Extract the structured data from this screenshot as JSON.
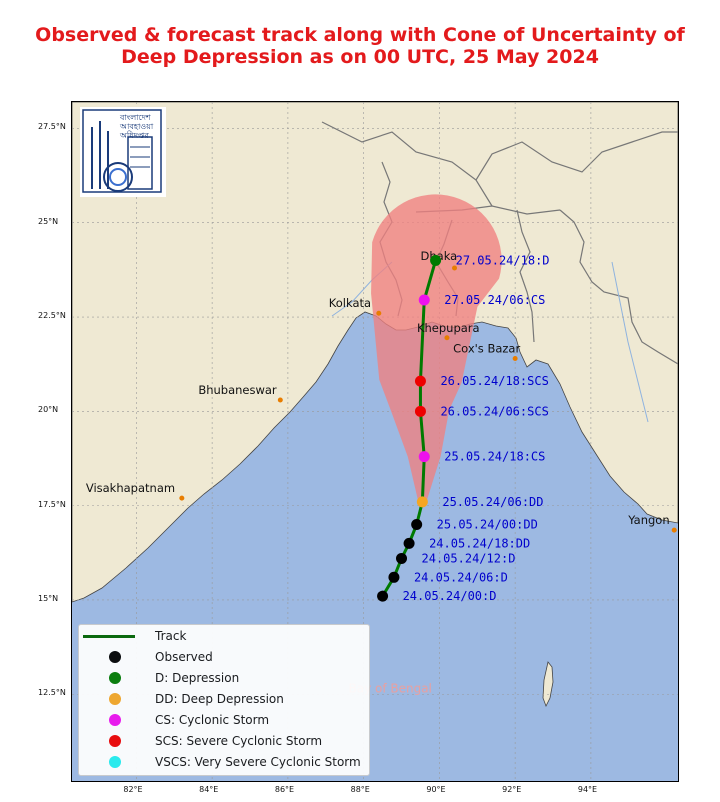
{
  "title": {
    "line1": "Observed & forecast track along with Cone of Uncertainty of",
    "line2": "Deep Depression as on 00 UTC, 25 May 2024"
  },
  "logo": {
    "text_lines": [
      "বাংলাদেশ",
      "আবহাওয়া",
      "অধিদপ্তর"
    ]
  },
  "axes": {
    "x_ticks": [
      {
        "lon": 82,
        "label": "82°E"
      },
      {
        "lon": 84,
        "label": "84°E"
      },
      {
        "lon": 86,
        "label": "86°E"
      },
      {
        "lon": 88,
        "label": "88°E"
      },
      {
        "lon": 90,
        "label": "90°E"
      },
      {
        "lon": 92,
        "label": "92°E"
      },
      {
        "lon": 94,
        "label": "94°E"
      }
    ],
    "y_ticks": [
      {
        "lat": 27.5,
        "label": "27.5°N"
      },
      {
        "lat": 25,
        "label": "25°N"
      },
      {
        "lat": 22.5,
        "label": "22.5°N"
      },
      {
        "lat": 20,
        "label": "20°N"
      },
      {
        "lat": 17.5,
        "label": "17.5°N"
      },
      {
        "lat": 15,
        "label": "15°N"
      },
      {
        "lat": 12.5,
        "label": "12.5°N"
      }
    ],
    "lon_range": [
      80.3,
      96.3
    ],
    "lat_range": [
      10.2,
      28.2
    ],
    "grid": true
  },
  "cities": [
    {
      "name": "Dhaka",
      "lon": 90.4,
      "lat": 23.8
    },
    {
      "name": "Kolkata",
      "lon": 88.4,
      "lat": 22.6
    },
    {
      "name": "Khepupara",
      "lon": 90.2,
      "lat": 21.95
    },
    {
      "name": "Cox's Bazar",
      "lon": 92.0,
      "lat": 21.4
    },
    {
      "name": "Bhubaneswar",
      "lon": 85.8,
      "lat": 20.3
    },
    {
      "name": "Visakhapatnam",
      "lon": 83.2,
      "lat": 17.7
    },
    {
      "name": "Yangon",
      "lon": 96.2,
      "lat": 16.85
    }
  ],
  "sea_label": "Bay of Bengal",
  "track_points": [
    {
      "lon": 88.5,
      "lat": 15.1,
      "cat": "observed",
      "label": "24.05.24/00:D"
    },
    {
      "lon": 88.8,
      "lat": 15.6,
      "cat": "observed",
      "label": "24.05.24/06:D"
    },
    {
      "lon": 89.0,
      "lat": 16.1,
      "cat": "observed",
      "label": "24.05.24/12:D"
    },
    {
      "lon": 89.2,
      "lat": 16.5,
      "cat": "observed",
      "label": "24.05.24/18:DD"
    },
    {
      "lon": 89.4,
      "lat": 17.0,
      "cat": "observed",
      "label": "25.05.24/00:DD"
    },
    {
      "lon": 89.55,
      "lat": 17.6,
      "cat": "DD",
      "label": "25.05.24/06:DD"
    },
    {
      "lon": 89.6,
      "lat": 18.8,
      "cat": "CS",
      "label": "25.05.24/18:CS"
    },
    {
      "lon": 89.5,
      "lat": 20.0,
      "cat": "SCS",
      "label": "26.05.24/06:SCS"
    },
    {
      "lon": 89.5,
      "lat": 20.8,
      "cat": "SCS",
      "label": "26.05.24/18:SCS"
    },
    {
      "lon": 89.6,
      "lat": 22.95,
      "cat": "CS",
      "label": "27.05.24/06:CS"
    },
    {
      "lon": 89.9,
      "lat": 24.0,
      "cat": "D",
      "label": "27.05.24/18:D"
    }
  ],
  "legend": {
    "items": [
      {
        "kind": "line",
        "color": "#007a00",
        "label": "Track"
      },
      {
        "kind": "dot",
        "color": "#000000",
        "label": "Observed"
      },
      {
        "kind": "dot",
        "color": "#007a00",
        "label": "D: Depression"
      },
      {
        "kind": "dot",
        "color": "#f5a623",
        "label": "DD: Deep Depression"
      },
      {
        "kind": "dot",
        "color": "#ee11ee",
        "label": "CS: Cyclonic Storm"
      },
      {
        "kind": "dot",
        "color": "#ee0000",
        "label": "SCS: Severe Cyclonic Storm"
      },
      {
        "kind": "dot",
        "color": "#22eeee",
        "label": "VSCS: Very Severe Cyclonic Storm"
      }
    ]
  },
  "colors": {
    "land": "#efe9d3",
    "sea": "#9db9e2",
    "cone": "#f08080",
    "track": "#007a00",
    "label_text": "#0000cc",
    "city_dot": "#e87d00"
  }
}
